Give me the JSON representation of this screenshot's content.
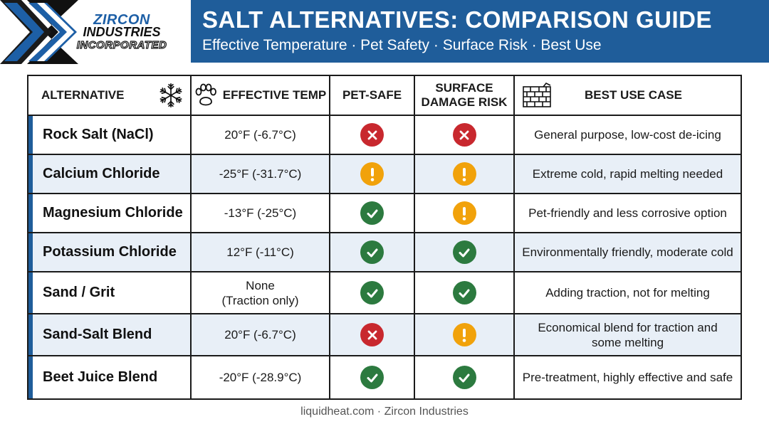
{
  "logo": {
    "line1": "ZIRCON",
    "line2": "INDUSTRIES",
    "line3": "INCORPORATED",
    "colors": {
      "blue": "#1d5fa6",
      "dark": "#111111"
    }
  },
  "header": {
    "title": "SALT ALTERNATIVES: COMPARISON GUIDE",
    "subtitle": "Effective Temperature · Pet Safety · Surface Risk · Best Use",
    "band_color": "#1f5d9a"
  },
  "table": {
    "headers": {
      "alternative": "ALTERNATIVE",
      "alternative_icon": "snowflake-icon",
      "effective_temp": "EFFECTIVE TEMP",
      "effective_temp_icon": "paw-icon",
      "pet_safe": "PET-SAFE",
      "surface_risk_line1": "SURFACE",
      "surface_risk_line2": "DAMAGE RISK",
      "surface_risk_icon": "brick-wall-icon",
      "best_use": "BEST USE CASE"
    },
    "status_colors": {
      "good": "#2c7a3f",
      "bad": "#c8282e",
      "warn": "#f1a20b"
    },
    "rows": [
      {
        "name": "Rock Salt (NaCl)",
        "temp": "20°F (-6.7°C)",
        "temp2": "",
        "pet": "bad",
        "surface": "bad",
        "use": "General purpose, low-cost de-icing",
        "use2": ""
      },
      {
        "name": "Calcium Chloride",
        "temp": "-25°F (-31.7°C)",
        "temp2": "",
        "pet": "warn",
        "surface": "warn",
        "use": "Extreme cold, rapid melting needed",
        "use2": ""
      },
      {
        "name": "Magnesium Chloride",
        "temp": "-13°F (-25°C)",
        "temp2": "",
        "pet": "good",
        "surface": "warn",
        "use": "Pet-friendly and less corrosive option",
        "use2": ""
      },
      {
        "name": "Potassium Chloride",
        "temp": "12°F (-11°C)",
        "temp2": "",
        "pet": "good",
        "surface": "good",
        "use": "Environmentally friendly, moderate cold",
        "use2": ""
      },
      {
        "name": "Sand / Grit",
        "temp": "None",
        "temp2": "(Traction only)",
        "pet": "good",
        "surface": "good",
        "use": "Adding traction, not for melting",
        "use2": ""
      },
      {
        "name": "Sand-Salt Blend",
        "temp": "20°F (-6.7°C)",
        "temp2": "",
        "pet": "bad",
        "surface": "warn",
        "use": "Economical blend for traction and",
        "use2": "some melting"
      },
      {
        "name": "Beet Juice Blend",
        "temp": "-20°F (-28.9°C)",
        "temp2": "",
        "pet": "good",
        "surface": "good",
        "use": "Pre-treatment, highly effective and safe",
        "use2": ""
      }
    ]
  },
  "footer": "liquidheat.com · Zircon Industries"
}
